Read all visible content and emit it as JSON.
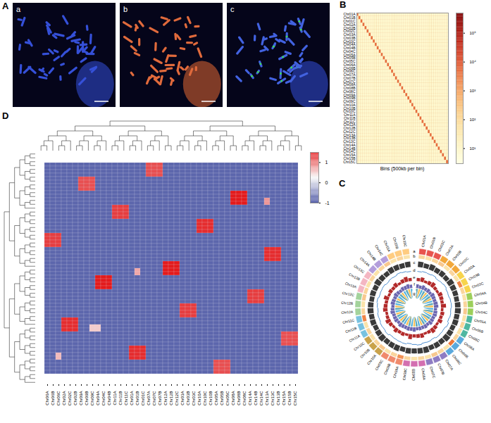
{
  "chart_data": [
    {
      "panel": "A",
      "type": "image",
      "subpanels": [
        "a",
        "b",
        "c"
      ]
    },
    {
      "panel": "B",
      "type": "heatmap",
      "categories": [
        "Chr01A",
        "Chr01B",
        "Chr01C",
        "Chr02A",
        "Chr02B",
        "Chr02C",
        "Chr03A",
        "Chr03B",
        "Chr03C",
        "Chr04A",
        "Chr04B",
        "Chr04C",
        "Chr05A",
        "Chr05B",
        "Chr05C",
        "Chr06A",
        "Chr06B",
        "Chr06C",
        "Chr07A",
        "Chr07B",
        "Chr07C",
        "Chr08A",
        "Chr08B",
        "Chr08C",
        "Chr09A",
        "Chr09B",
        "Chr09C",
        "Chr10A",
        "Chr10B",
        "Chr10C",
        "Chr11A",
        "Chr11B",
        "Chr11C",
        "Chr12A",
        "Chr12B",
        "Chr12C",
        "Chr13A",
        "Chr13B",
        "Chr13C",
        "Chr14A",
        "Chr14B",
        "Chr14C",
        "Chr15A",
        "Chr15B",
        "Chr15C"
      ],
      "xlabel": "Bins (500kb per bin)",
      "tick_labels": "y",
      "cells": {
        "diagonal": 5000,
        "off_diagonal": 8
      },
      "colorbar": {
        "log": true,
        "range": [
          3,
          500000
        ],
        "ticks": [
          {
            "value": 10,
            "label": "10¹"
          },
          {
            "value": 100,
            "label": "10²"
          },
          {
            "value": 1000,
            "label": "10³"
          },
          {
            "value": 10000,
            "label": "10⁴"
          },
          {
            "value": 100000,
            "label": "10⁵"
          }
        ],
        "colors": [
          "#ffffe0",
          "#fde9a8",
          "#f7a55a",
          "#d7301f",
          "#7f0000"
        ]
      }
    },
    {
      "panel": "C",
      "type": "circos",
      "categories": [
        "Chr01A",
        "Chr01B",
        "Chr01C",
        "Chr02A",
        "Chr02B",
        "Chr02C",
        "Chr03A",
        "Chr03B",
        "Chr03C",
        "Chr04A",
        "Chr04B",
        "Chr04C",
        "Chr05A",
        "Chr05B",
        "Chr05C",
        "Chr06A",
        "Chr06B",
        "Chr06C",
        "Chr07A",
        "Chr07B",
        "Chr07C",
        "Chr08A",
        "Chr08B",
        "Chr08C",
        "Chr09A",
        "Chr09B",
        "Chr09C",
        "Chr10A",
        "Chr10B",
        "Chr10C",
        "Chr11A",
        "Chr11B",
        "Chr11C",
        "Chr12A",
        "Chr12B",
        "Chr12C",
        "Chr13A",
        "Chr13B",
        "Chr13C",
        "Chr14A",
        "Chr14B",
        "Chr14C",
        "Chr15A",
        "Chr15B",
        "Chr15C"
      ],
      "ylim": [
        0,
        1
      ],
      "tracks": [
        {
          "name": "a",
          "type": "ideogram",
          "colors": [
            "#e8544e",
            "#f2a83b",
            "#f7d44c",
            "#9ccf5a",
            "#4fb7a0",
            "#5aa9dd",
            "#8e7cc3",
            "#d36fb0",
            "#f08a6c",
            "#c9a24a",
            "#78c2e0",
            "#a3d39c",
            "#f4b6c2",
            "#b39ddb",
            "#ffcc80"
          ]
        },
        {
          "name": "b",
          "type": "heat",
          "colors": [
            "#fdf0b8",
            "#ec6a2c"
          ],
          "values": [
            0.2,
            0.1,
            0.2,
            0.3,
            0.1,
            0.2,
            0.1,
            0.8,
            0.2,
            0.1,
            0.2,
            0.3,
            0.1,
            0.2,
            0.1,
            0.2,
            0.9,
            0.1,
            0.2,
            0.3,
            0.1,
            0.2,
            0.1,
            0.2,
            0.7,
            0.2,
            0.1,
            0.3,
            0.2,
            0.1,
            0.2,
            0.1,
            0.8,
            0.2,
            0.1,
            0.3,
            0.2,
            0.1,
            0.2,
            0.1,
            0.2,
            0.3,
            0.1,
            0.2,
            0.1
          ]
        },
        {
          "name": "c",
          "type": "bar",
          "color": "#3a3a3a",
          "values": [
            0.7,
            0.6,
            0.75,
            0.65,
            0.7,
            0.6,
            0.8,
            0.7,
            0.65,
            0.6,
            0.7,
            0.75,
            0.65,
            0.7,
            0.6,
            0.7,
            0.8,
            0.65,
            0.7,
            0.6,
            0.75,
            0.7,
            0.65,
            0.7,
            0.6,
            0.75,
            0.7,
            0.65,
            0.8,
            0.7,
            0.6,
            0.7,
            0.65,
            0.75,
            0.7,
            0.6,
            0.7,
            0.65,
            0.8,
            0.7,
            0.6,
            0.75,
            0.7,
            0.65,
            0.7
          ]
        },
        {
          "name": "d",
          "type": "line",
          "color": "#4f8fd0",
          "values": [
            0.4,
            0.5,
            0.45,
            0.55,
            0.4,
            0.5,
            0.6,
            0.45,
            0.4,
            0.5,
            0.55,
            0.45,
            0.5,
            0.4,
            0.6,
            0.45,
            0.5,
            0.55,
            0.4,
            0.5,
            0.45,
            0.6,
            0.5,
            0.4,
            0.55,
            0.5,
            0.45,
            0.4,
            0.6,
            0.5,
            0.55,
            0.45,
            0.5,
            0.4,
            0.5,
            0.6,
            0.45,
            0.5,
            0.55,
            0.4,
            0.5,
            0.45,
            0.6,
            0.5,
            0.4
          ]
        },
        {
          "name": "e",
          "type": "bar",
          "color": "#b22a2a",
          "values": [
            0.5,
            0.7,
            0.4,
            0.6,
            0.8,
            0.5,
            0.4,
            0.7,
            0.6,
            0.5,
            0.8,
            0.4,
            0.6,
            0.5,
            0.7,
            0.4,
            0.6,
            0.8,
            0.5,
            0.4,
            0.7,
            0.6,
            0.5,
            0.8,
            0.4,
            0.6,
            0.5,
            0.7,
            0.4,
            0.6,
            0.8,
            0.5,
            0.4,
            0.7,
            0.6,
            0.5,
            0.8,
            0.4,
            0.6,
            0.5,
            0.7,
            0.4,
            0.6,
            0.8,
            0.5
          ]
        },
        {
          "name": "f",
          "type": "bar",
          "color": "#6b66b0",
          "values": [
            0.6,
            0.5,
            0.7,
            0.55,
            0.65,
            0.5,
            0.7,
            0.6,
            0.55,
            0.65,
            0.7,
            0.5,
            0.6,
            0.65,
            0.55,
            0.6,
            0.7,
            0.5,
            0.65,
            0.55,
            0.6,
            0.5,
            0.7,
            0.6,
            0.65,
            0.55,
            0.6,
            0.7,
            0.5,
            0.65,
            0.6,
            0.55,
            0.7,
            0.6,
            0.5,
            0.65,
            0.6,
            0.55,
            0.7,
            0.6,
            0.5,
            0.65,
            0.6,
            0.7,
            0.55
          ]
        },
        {
          "name": "g",
          "type": "links",
          "links": [
            {
              "from": "A",
              "to": "B",
              "color": "#f4b43a"
            },
            {
              "from": "A",
              "to": "C",
              "color": "#38a6d9"
            }
          ]
        }
      ]
    },
    {
      "panel": "D",
      "type": "clustermap",
      "columns": [
        "Chr06A",
        "Chr06B",
        "Chr06C",
        "Chr02A",
        "Chr02C",
        "Chr02B",
        "Chr09A",
        "Chr09B",
        "Chr09C",
        "Chr04A",
        "Chr04C",
        "Chr04B",
        "Chr11A",
        "Chr11B",
        "Chr11C",
        "Chr01A",
        "Chr01B",
        "Chr01C",
        "Chr07A",
        "Chr07C",
        "Chr07B",
        "Chr12A",
        "Chr12B",
        "Chr12C",
        "Chr03A",
        "Chr03B",
        "Chr03C",
        "Chr10A",
        "Chr10C",
        "Chr10B",
        "Chr05A",
        "Chr05B",
        "Chr05C",
        "Chr08A",
        "Chr08B",
        "Chr08C",
        "Chr14A",
        "Chr14B",
        "Chr14C",
        "Chr13A",
        "Chr13C",
        "Chr13B",
        "Chr15A",
        "Chr15B",
        "Chr15C"
      ],
      "row_count": 60,
      "background": -0.8,
      "blocks": [
        {
          "columns": [
            "Chr06A",
            "Chr06B",
            "Chr06C"
          ],
          "rows": [
            20,
            23
          ],
          "value": 1.3
        },
        {
          "columns": [
            "Chr02A",
            "Chr02C",
            "Chr02B"
          ],
          "rows": [
            44,
            47
          ],
          "value": 1.4
        },
        {
          "columns": [
            "Chr09A",
            "Chr09B",
            "Chr09C"
          ],
          "rows": [
            4,
            7
          ],
          "value": 1.2
        },
        {
          "columns": [
            "Chr04A",
            "Chr04C",
            "Chr04B"
          ],
          "rows": [
            32,
            35
          ],
          "value": 1.5
        },
        {
          "columns": [
            "Chr11A",
            "Chr11B",
            "Chr11C"
          ],
          "rows": [
            12,
            15
          ],
          "value": 1.3
        },
        {
          "columns": [
            "Chr01A",
            "Chr01B",
            "Chr01C"
          ],
          "rows": [
            52,
            55
          ],
          "value": 1.4
        },
        {
          "columns": [
            "Chr07A",
            "Chr07C",
            "Chr07B"
          ],
          "rows": [
            0,
            3
          ],
          "value": 1.2
        },
        {
          "columns": [
            "Chr12A",
            "Chr12B",
            "Chr12C"
          ],
          "rows": [
            28,
            31
          ],
          "value": 1.5
        },
        {
          "columns": [
            "Chr03A",
            "Chr03B",
            "Chr03C"
          ],
          "rows": [
            40,
            43
          ],
          "value": 1.3
        },
        {
          "columns": [
            "Chr10A",
            "Chr10C",
            "Chr10B"
          ],
          "rows": [
            16,
            19
          ],
          "value": 1.4
        },
        {
          "columns": [
            "Chr05A",
            "Chr05B",
            "Chr05C"
          ],
          "rows": [
            56,
            59
          ],
          "value": 1.2
        },
        {
          "columns": [
            "Chr08A",
            "Chr08B",
            "Chr08C"
          ],
          "rows": [
            8,
            11
          ],
          "value": 1.5
        },
        {
          "columns": [
            "Chr14A",
            "Chr14B",
            "Chr14C"
          ],
          "rows": [
            36,
            39
          ],
          "value": 1.3
        },
        {
          "columns": [
            "Chr13A",
            "Chr13C",
            "Chr13B"
          ],
          "rows": [
            24,
            27
          ],
          "value": 1.4
        },
        {
          "columns": [
            "Chr15A",
            "Chr15B",
            "Chr15C"
          ],
          "rows": [
            48,
            51
          ],
          "value": 1.2
        },
        {
          "columns": [
            "Chr01B"
          ],
          "rows": [
            30,
            31
          ],
          "value": 0.7
        },
        {
          "columns": [
            "Chr09C",
            "Chr04A"
          ],
          "rows": [
            46,
            47
          ],
          "value": 0.5
        },
        {
          "columns": [
            "Chr13A"
          ],
          "rows": [
            10,
            11
          ],
          "value": 0.8
        },
        {
          "columns": [
            "Chr06C"
          ],
          "rows": [
            54,
            55
          ],
          "value": 0.6
        }
      ],
      "colorbar": {
        "range": [
          -1,
          1.5
        ],
        "ticks": [
          -1,
          0,
          1
        ],
        "colors": [
          "#3f4a9e",
          "#f7f7f7",
          "#e31a1c"
        ]
      }
    }
  ]
}
